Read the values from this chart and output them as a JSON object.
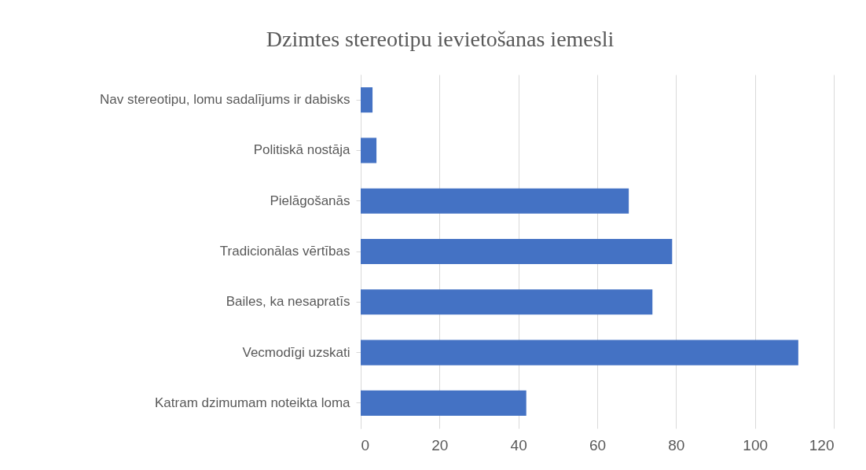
{
  "chart_data": {
    "type": "bar",
    "orientation": "horizontal",
    "title": "Dzimtes stereotipu ievietošanas iemesli",
    "categories": [
      "Nav stereotipu, lomu sadalījums ir dabisks",
      "Politiskā nostāja",
      "Pielāgošanās",
      "Tradicionālas vērtības",
      "Bailes, ka nesapratīs",
      "Vecmodīgi uzskati",
      "Katram dzimumam noteikta loma"
    ],
    "values": [
      3,
      4,
      68,
      79,
      74,
      111,
      42
    ],
    "color": "#4472c4",
    "xlim": [
      0,
      120
    ],
    "xticks": [
      0,
      20,
      40,
      60,
      80,
      100,
      120
    ],
    "grid": "x"
  }
}
